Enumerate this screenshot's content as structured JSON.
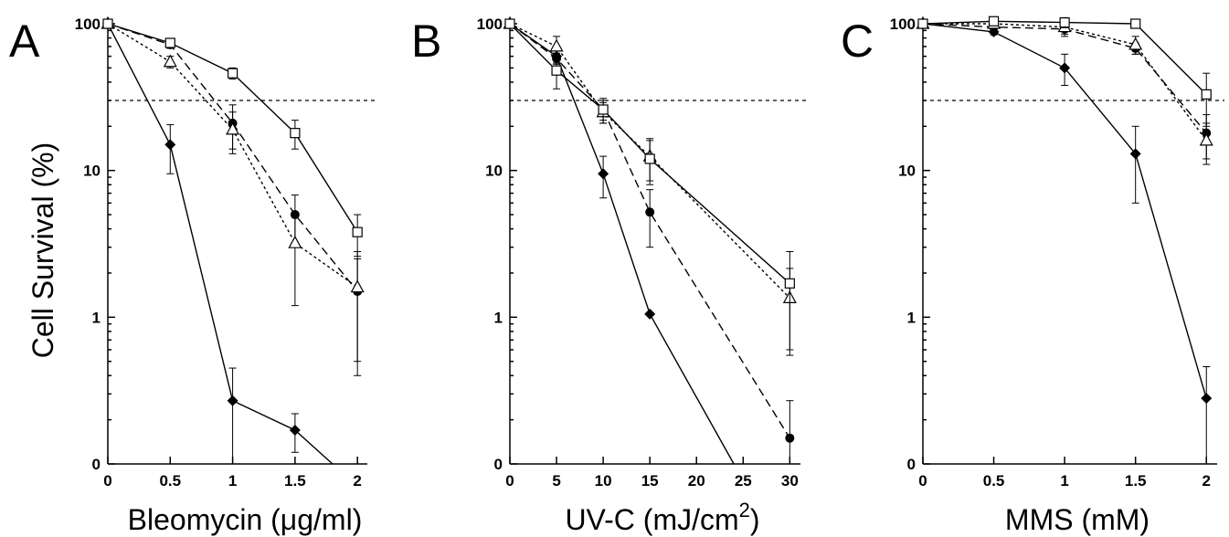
{
  "ylabel": "Cell Survival (%)",
  "chart_data": [
    {
      "type": "line",
      "panel": "A",
      "xlabel_parts": [
        "Bleomycin (",
        "μ",
        "g/ml)"
      ],
      "y_scale": "log",
      "xlim": [
        0,
        2.05
      ],
      "x_ticks": [
        0,
        0.5,
        1,
        1.5,
        2
      ],
      "x_tick_labels": [
        "0",
        "0.5",
        "1",
        "1.5",
        "2"
      ],
      "y_ticks": [
        0.1,
        1,
        10,
        100
      ],
      "y_tick_labels": [
        "0",
        "1",
        "10",
        "100"
      ],
      "reference_line": 30,
      "series": [
        {
          "marker": "diamond-filled",
          "dash": "solid",
          "x": [
            0,
            0.5,
            1,
            1.5,
            1.8
          ],
          "y": [
            100,
            15,
            0.27,
            0.17,
            0.1
          ],
          "err": [
            0,
            5.5,
            0.18,
            0.05,
            0
          ]
        },
        {
          "marker": "circle-filled",
          "dash": "dashed",
          "x": [
            0,
            0.5,
            1,
            1.5,
            2
          ],
          "y": [
            100,
            72,
            21,
            5,
            1.5
          ],
          "err": [
            0,
            4,
            7,
            1.8,
            1.0
          ]
        },
        {
          "marker": "triangle-open",
          "dash": "dotted",
          "x": [
            0,
            0.5,
            1,
            1.5,
            2
          ],
          "y": [
            100,
            55,
            19,
            3.2,
            1.6
          ],
          "err": [
            0,
            5,
            6,
            2.0,
            1.2
          ]
        },
        {
          "marker": "square-open",
          "dash": "solid",
          "x": [
            0,
            0.5,
            1,
            1.5,
            2
          ],
          "y": [
            100,
            74,
            46,
            18,
            3.8
          ],
          "err": [
            0,
            4,
            4,
            4,
            1.2
          ]
        }
      ]
    },
    {
      "type": "line",
      "panel": "B",
      "xlabel_parts": [
        "UV-C (mJ/cm",
        "2",
        ")"
      ],
      "y_scale": "log",
      "xlim": [
        0,
        30.75
      ],
      "x_ticks": [
        0,
        5,
        10,
        15,
        20,
        25,
        30
      ],
      "x_tick_labels": [
        "0",
        "5",
        "10",
        "15",
        "20",
        "25",
        "30"
      ],
      "y_ticks": [
        0.1,
        1,
        10,
        100
      ],
      "y_tick_labels": [
        "0",
        "1",
        "10",
        "100"
      ],
      "reference_line": 30,
      "series": [
        {
          "marker": "diamond-filled",
          "dash": "solid",
          "x": [
            0,
            5,
            10,
            15,
            24
          ],
          "y": [
            100,
            60,
            9.5,
            1.05,
            0.1
          ],
          "err": [
            0,
            6,
            3,
            0,
            0
          ]
        },
        {
          "marker": "circle-filled",
          "dash": "dashed",
          "x": [
            0,
            5,
            10,
            15,
            30
          ],
          "y": [
            100,
            58,
            26,
            5.2,
            0.15
          ],
          "err": [
            0,
            5,
            5,
            2.2,
            0.12
          ]
        },
        {
          "marker": "triangle-open",
          "dash": "dotted",
          "x": [
            0,
            5,
            10,
            15,
            30
          ],
          "y": [
            100,
            70,
            25,
            12.5,
            1.35
          ],
          "err": [
            0,
            12,
            4,
            4,
            0.8
          ]
        },
        {
          "marker": "square-open",
          "dash": "solid",
          "x": [
            0,
            5,
            10,
            15,
            30
          ],
          "y": [
            100,
            48,
            26,
            12,
            1.7
          ],
          "err": [
            0,
            12,
            4,
            4,
            1.1
          ]
        }
      ]
    },
    {
      "type": "line",
      "panel": "C",
      "xlabel_parts": [
        "MMS (mM)",
        "",
        ""
      ],
      "y_scale": "log",
      "xlim": [
        0,
        2.05
      ],
      "x_ticks": [
        0,
        0.5,
        1,
        1.5,
        2
      ],
      "x_tick_labels": [
        "0",
        "0.5",
        "1",
        "1.5",
        "2"
      ],
      "y_ticks": [
        0.1,
        1,
        10,
        100
      ],
      "y_tick_labels": [
        "0",
        "1",
        "10",
        "100"
      ],
      "reference_line": 30,
      "series": [
        {
          "marker": "diamond-filled",
          "dash": "solid",
          "x": [
            0,
            0.5,
            1,
            1.5,
            2
          ],
          "y": [
            100,
            88,
            50,
            13,
            0.28
          ],
          "err": [
            0,
            4,
            12,
            7,
            0.18
          ]
        },
        {
          "marker": "circle-filled",
          "dash": "dashed",
          "x": [
            0,
            0.5,
            1,
            1.5,
            2
          ],
          "y": [
            100,
            95,
            92,
            68,
            18
          ],
          "err": [
            0,
            5,
            10,
            6,
            6
          ]
        },
        {
          "marker": "triangle-open",
          "dash": "dotted",
          "x": [
            0,
            0.5,
            1,
            1.5,
            2
          ],
          "y": [
            100,
            100,
            95,
            72,
            16
          ],
          "err": [
            0,
            5,
            10,
            10,
            5
          ]
        },
        {
          "marker": "square-open",
          "dash": "solid",
          "x": [
            0,
            0.5,
            1,
            1.5,
            2
          ],
          "y": [
            100,
            104,
            102,
            100,
            33
          ],
          "err": [
            0,
            4,
            8,
            5,
            13
          ]
        }
      ]
    }
  ]
}
